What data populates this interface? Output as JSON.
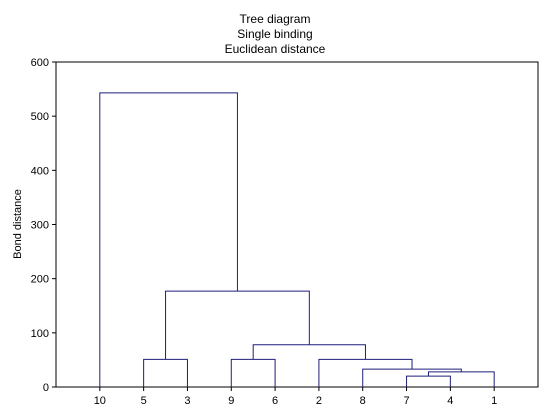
{
  "chart_data": {
    "type": "dendrogram",
    "title": [
      "Tree diagram",
      "Single binding",
      "Euclidean distance"
    ],
    "xlabel": "",
    "ylabel": "Bond distance",
    "ylim": [
      0,
      600
    ],
    "yticks": [
      0,
      100,
      200,
      300,
      400,
      500,
      600
    ],
    "grid": false,
    "leaves": [
      "10",
      "5",
      "3",
      "9",
      "6",
      "2",
      "8",
      "7",
      "4",
      "1"
    ],
    "merges": [
      {
        "left": "7",
        "right": "4",
        "height": 20
      },
      {
        "left": "7-4",
        "right": "1",
        "height": 28
      },
      {
        "left": "8",
        "right": "7-4-1",
        "height": 33
      },
      {
        "left": "5",
        "right": "3",
        "height": 51
      },
      {
        "left": "9",
        "right": "6",
        "height": 51
      },
      {
        "left": "2",
        "right": "8-7-4-1",
        "height": 51
      },
      {
        "left": "9-6",
        "right": "2-8-7-4-1",
        "height": 78
      },
      {
        "left": "5-3",
        "right": "9-6-2-8-7-4-1",
        "height": 177
      },
      {
        "left": "10",
        "right": "5-3-9-6-2-8-7-4-1",
        "height": 543
      }
    ],
    "colors": {
      "lines": "#1f1f7a",
      "axis": "#000000"
    }
  }
}
